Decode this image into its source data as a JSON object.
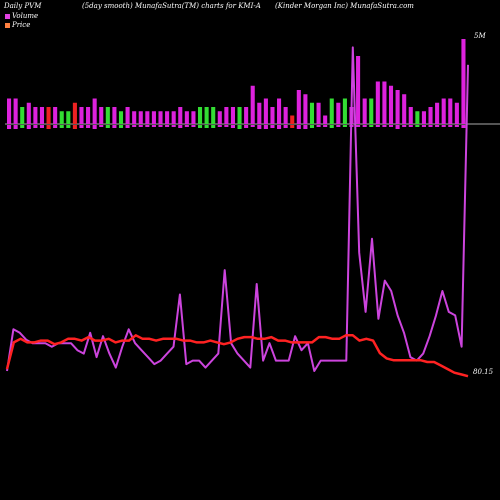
{
  "header": {
    "left": "Daily PVM",
    "middle": "(5day smooth) MunafaSutra(TM) charts for KMI-A",
    "right": "(Kinder Morgan Inc) MunafaSutra.com"
  },
  "legend": {
    "volume_label": "Volume",
    "volume_color": "#e040e0",
    "price_label": "Price",
    "price_color": "#ff8040"
  },
  "labels": {
    "volume_max": "5M",
    "price_last": "80.15"
  },
  "colors": {
    "volume_up": "#dd22dd",
    "volume_down": "#ee2222",
    "volume_neutral": "#33dd33",
    "price_line": "#ff2222",
    "volume_line": "#cc44dd",
    "baseline": "#aaaaaa"
  },
  "chart_data": {
    "type": "bar",
    "title": "",
    "xlabel": "",
    "ylabel": "",
    "volume_bars": [
      {
        "up": 0.3,
        "down": 0.2,
        "c": "m"
      },
      {
        "up": 0.3,
        "down": 0.2,
        "c": "m"
      },
      {
        "up": 0.2,
        "down": 0.15,
        "c": "g"
      },
      {
        "up": 0.25,
        "down": 0.2,
        "c": "m"
      },
      {
        "up": 0.2,
        "down": 0.15,
        "c": "m"
      },
      {
        "up": 0.2,
        "down": 0.15,
        "c": "m"
      },
      {
        "up": 0.2,
        "down": 0.2,
        "c": "r"
      },
      {
        "up": 0.2,
        "down": 0.15,
        "c": "m"
      },
      {
        "up": 0.15,
        "down": 0.15,
        "c": "g"
      },
      {
        "up": 0.15,
        "down": 0.15,
        "c": "g"
      },
      {
        "up": 0.25,
        "down": 0.2,
        "c": "r"
      },
      {
        "up": 0.2,
        "down": 0.15,
        "c": "m"
      },
      {
        "up": 0.2,
        "down": 0.15,
        "c": "m"
      },
      {
        "up": 0.3,
        "down": 0.2,
        "c": "m"
      },
      {
        "up": 0.2,
        "down": 0.1,
        "c": "m"
      },
      {
        "up": 0.2,
        "down": 0.15,
        "c": "g"
      },
      {
        "up": 0.2,
        "down": 0.15,
        "c": "m"
      },
      {
        "up": 0.15,
        "down": 0.15,
        "c": "g"
      },
      {
        "up": 0.2,
        "down": 0.15,
        "c": "m"
      },
      {
        "up": 0.15,
        "down": 0.1,
        "c": "m"
      },
      {
        "up": 0.15,
        "down": 0.1,
        "c": "m"
      },
      {
        "up": 0.15,
        "down": 0.1,
        "c": "m"
      },
      {
        "up": 0.15,
        "down": 0.1,
        "c": "m"
      },
      {
        "up": 0.15,
        "down": 0.1,
        "c": "m"
      },
      {
        "up": 0.15,
        "down": 0.1,
        "c": "m"
      },
      {
        "up": 0.15,
        "down": 0.1,
        "c": "m"
      },
      {
        "up": 0.2,
        "down": 0.15,
        "c": "m"
      },
      {
        "up": 0.15,
        "down": 0.1,
        "c": "m"
      },
      {
        "up": 0.15,
        "down": 0.1,
        "c": "m"
      },
      {
        "up": 0.2,
        "down": 0.15,
        "c": "g"
      },
      {
        "up": 0.2,
        "down": 0.15,
        "c": "g"
      },
      {
        "up": 0.2,
        "down": 0.15,
        "c": "g"
      },
      {
        "up": 0.15,
        "down": 0.1,
        "c": "m"
      },
      {
        "up": 0.2,
        "down": 0.1,
        "c": "m"
      },
      {
        "up": 0.2,
        "down": 0.15,
        "c": "m"
      },
      {
        "up": 0.2,
        "down": 0.2,
        "c": "g"
      },
      {
        "up": 0.2,
        "down": 0.15,
        "c": "m"
      },
      {
        "up": 0.45,
        "down": 0.1,
        "c": "m"
      },
      {
        "up": 0.25,
        "down": 0.2,
        "c": "m"
      },
      {
        "up": 0.3,
        "down": 0.2,
        "c": "m"
      },
      {
        "up": 0.2,
        "down": 0.15,
        "c": "m"
      },
      {
        "up": 0.3,
        "down": 0.2,
        "c": "m"
      },
      {
        "up": 0.2,
        "down": 0.15,
        "c": "m"
      },
      {
        "up": 0.1,
        "down": 0.15,
        "c": "r"
      },
      {
        "up": 0.4,
        "down": 0.2,
        "c": "m"
      },
      {
        "up": 0.35,
        "down": 0.2,
        "c": "m"
      },
      {
        "up": 0.25,
        "down": 0.15,
        "c": "g"
      },
      {
        "up": 0.25,
        "down": 0.1,
        "c": "m"
      },
      {
        "up": 0.1,
        "down": 0.1,
        "c": "m"
      },
      {
        "up": 0.3,
        "down": 0.15,
        "c": "g"
      },
      {
        "up": 0.25,
        "down": 0.1,
        "c": "m"
      },
      {
        "up": 0.3,
        "down": 0.1,
        "c": "g"
      },
      {
        "up": 0.2,
        "down": 0.1,
        "c": "m"
      },
      {
        "up": 0.8,
        "down": 0.1,
        "c": "m"
      },
      {
        "up": 0.3,
        "down": 0.1,
        "c": "m"
      },
      {
        "up": 0.3,
        "down": 0.1,
        "c": "g"
      },
      {
        "up": 0.5,
        "down": 0.1,
        "c": "m"
      },
      {
        "up": 0.5,
        "down": 0.1,
        "c": "m"
      },
      {
        "up": 0.45,
        "down": 0.1,
        "c": "m"
      },
      {
        "up": 0.4,
        "down": 0.2,
        "c": "m"
      },
      {
        "up": 0.35,
        "down": 0.1,
        "c": "m"
      },
      {
        "up": 0.2,
        "down": 0.1,
        "c": "m"
      },
      {
        "up": 0.15,
        "down": 0.1,
        "c": "g"
      },
      {
        "up": 0.15,
        "down": 0.1,
        "c": "m"
      },
      {
        "up": 0.2,
        "down": 0.1,
        "c": "m"
      },
      {
        "up": 0.25,
        "down": 0.1,
        "c": "m"
      },
      {
        "up": 0.3,
        "down": 0.1,
        "c": "m"
      },
      {
        "up": 0.3,
        "down": 0.1,
        "c": "m"
      },
      {
        "up": 0.25,
        "down": 0.1,
        "c": "m"
      },
      {
        "up": 1.0,
        "down": 0.15,
        "c": "m"
      }
    ],
    "volume_up_sample": [
      0.05,
      0.05,
      0.04,
      0.05,
      0.05,
      0.04,
      0.04,
      0.05,
      0.04,
      0.03,
      0.04,
      0.05,
      0.06,
      0.04,
      0.04,
      0.05,
      0.04,
      0.03,
      0.05,
      0.04,
      0.04,
      0.05,
      0.05,
      0.04,
      0.05,
      0.05,
      0.06,
      0.05,
      0.05,
      0.05,
      0.05,
      0.05,
      0.04,
      0.05,
      0.05,
      0.05,
      0.04,
      0.05,
      0.05,
      0.04,
      0.05,
      0.05,
      0.25,
      0.05,
      0.05,
      0.05,
      0.05,
      0.05,
      0.04,
      0.06,
      0.05,
      0.05,
      0.05,
      0.05,
      0.06,
      0.05,
      1.0,
      0.85,
      0.25,
      0.75,
      0.05,
      0.05,
      0.05,
      0.05,
      0.06,
      0.05,
      0.05,
      0.05,
      0.05,
      0.05
    ],
    "price_series": [
      0.05,
      0.2,
      0.22,
      0.2,
      0.2,
      0.21,
      0.21,
      0.19,
      0.2,
      0.22,
      0.22,
      0.21,
      0.23,
      0.21,
      0.21,
      0.22,
      0.2,
      0.21,
      0.21,
      0.24,
      0.22,
      0.22,
      0.21,
      0.22,
      0.22,
      0.22,
      0.21,
      0.21,
      0.2,
      0.2,
      0.21,
      0.2,
      0.19,
      0.2,
      0.22,
      0.23,
      0.23,
      0.22,
      0.22,
      0.23,
      0.21,
      0.21,
      0.2,
      0.2,
      0.2,
      0.2,
      0.23,
      0.23,
      0.22,
      0.22,
      0.24,
      0.24,
      0.21,
      0.22,
      0.21,
      0.14,
      0.11,
      0.1,
      0.1,
      0.1,
      0.1,
      0.1,
      0.09,
      0.09,
      0.07,
      0.05,
      0.03,
      0.02,
      0.01
    ],
    "volume_line_series": [
      0.02,
      0.14,
      0.13,
      0.11,
      0.1,
      0.1,
      0.1,
      0.09,
      0.1,
      0.1,
      0.1,
      0.08,
      0.07,
      0.13,
      0.06,
      0.12,
      0.07,
      0.03,
      0.09,
      0.14,
      0.1,
      0.08,
      0.06,
      0.04,
      0.05,
      0.07,
      0.09,
      0.24,
      0.04,
      0.05,
      0.05,
      0.03,
      0.05,
      0.07,
      0.31,
      0.1,
      0.07,
      0.05,
      0.03,
      0.27,
      0.05,
      0.1,
      0.05,
      0.05,
      0.05,
      0.12,
      0.08,
      0.1,
      0.02,
      0.05,
      0.05,
      0.05,
      0.05,
      0.05,
      0.95,
      0.36,
      0.19,
      0.4,
      0.17,
      0.28,
      0.25,
      0.18,
      0.13,
      0.06,
      0.05,
      0.07,
      0.12,
      0.18,
      0.25,
      0.19,
      0.18,
      0.09,
      0.9
    ]
  }
}
